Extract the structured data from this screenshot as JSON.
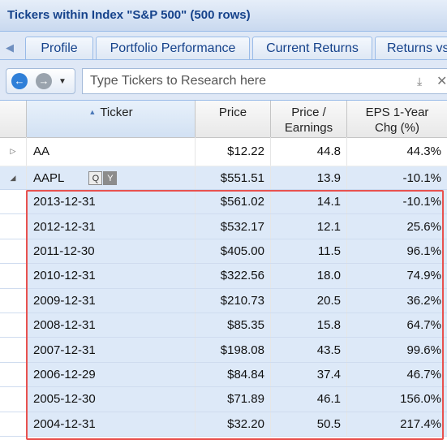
{
  "panel": {
    "title": "Tickers within Index \"S&P 500\" (500 rows)"
  },
  "tabs": [
    "Profile",
    "Portfolio Performance",
    "Current Returns",
    "Returns vs."
  ],
  "search": {
    "placeholder": "Type Tickers to Research here"
  },
  "icons": {
    "tab_scroll_left": "arrow-left-icon",
    "back": "back-circle-icon",
    "forward": "forward-circle-icon",
    "dropdown": "chevron-down-icon",
    "add": "arrow-down-icon",
    "clear": "close-icon"
  },
  "columns": {
    "ticker": "Ticker",
    "price": "Price",
    "pe_line1": "Price /",
    "pe_line2": "Earnings",
    "eps_line1": "EPS 1-Year",
    "eps_line2": "Chg (%)"
  },
  "sort": {
    "column": "Ticker",
    "direction": "ascending"
  },
  "rows": [
    {
      "ticker": "AA",
      "price": "$12.22",
      "pe": "44.8",
      "eps": "44.3%"
    },
    {
      "ticker": "AAPL",
      "price": "$551.51",
      "pe": "13.9",
      "eps": "-10.1%",
      "buttons": [
        "Q",
        "Y"
      ]
    }
  ],
  "yearly_rows": [
    {
      "date": "2013-12-31",
      "price": "$561.02",
      "pe": "14.1",
      "eps": "-10.1%"
    },
    {
      "date": "2012-12-31",
      "price": "$532.17",
      "pe": "12.1",
      "eps": "25.6%"
    },
    {
      "date": "2011-12-30",
      "price": "$405.00",
      "pe": "11.5",
      "eps": "96.1%"
    },
    {
      "date": "2010-12-31",
      "price": "$322.56",
      "pe": "18.0",
      "eps": "74.9%"
    },
    {
      "date": "2009-12-31",
      "price": "$210.73",
      "pe": "20.5",
      "eps": "36.2%"
    },
    {
      "date": "2008-12-31",
      "price": "$85.35",
      "pe": "15.8",
      "eps": "64.7%"
    },
    {
      "date": "2007-12-31",
      "price": "$198.08",
      "pe": "43.5",
      "eps": "99.6%"
    },
    {
      "date": "2006-12-29",
      "price": "$84.84",
      "pe": "37.4",
      "eps": "46.7%"
    },
    {
      "date": "2005-12-30",
      "price": "$71.89",
      "pe": "46.1",
      "eps": "156.0%"
    },
    {
      "date": "2004-12-31",
      "price": "$32.20",
      "pe": "50.5",
      "eps": "217.4%"
    }
  ],
  "colors": {
    "accent": "#15428b",
    "highlight": "#e8524f",
    "selected_row": "#dde9f8"
  }
}
